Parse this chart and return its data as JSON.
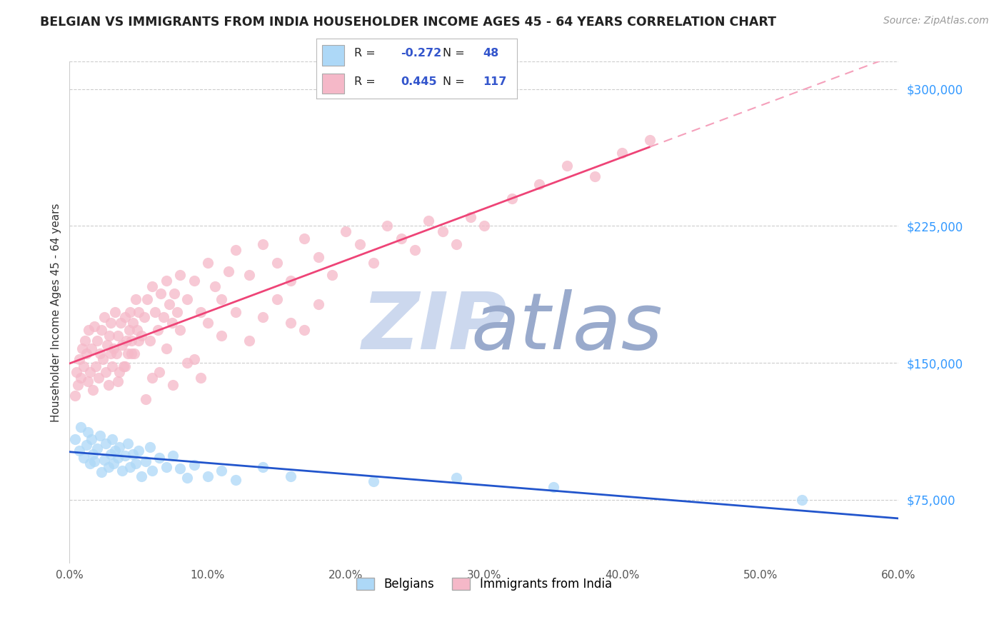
{
  "title": "BELGIAN VS IMMIGRANTS FROM INDIA HOUSEHOLDER INCOME AGES 45 - 64 YEARS CORRELATION CHART",
  "source": "Source: ZipAtlas.com",
  "ylabel_values": [
    75000,
    150000,
    225000,
    300000
  ],
  "ymin": 40000,
  "ymax": 315000,
  "xmin": 0.0,
  "xmax": 0.6,
  "xticks": [
    0.0,
    0.1,
    0.2,
    0.3,
    0.4,
    0.5,
    0.6
  ],
  "legend_labels": [
    "Belgians",
    "Immigrants from India"
  ],
  "legend_R": [
    "-0.272",
    "0.445"
  ],
  "legend_N": [
    "48",
    "117"
  ],
  "belgian_color": "#add8f7",
  "indian_color": "#f5b8c8",
  "belgian_line_color": "#2255cc",
  "indian_line_color": "#ee4477",
  "indian_line_dashed_color": "#f5a0bb",
  "watermark_zip_color": "#ccd8ee",
  "watermark_atlas_color": "#99aacc",
  "title_color": "#222222",
  "title_fontsize": 12.5,
  "source_color": "#999999",
  "source_fontsize": 10,
  "right_axis_color": "#3399ff",
  "belgian_scatter": {
    "x": [
      0.004,
      0.007,
      0.008,
      0.01,
      0.012,
      0.013,
      0.015,
      0.016,
      0.017,
      0.018,
      0.02,
      0.022,
      0.023,
      0.025,
      0.026,
      0.028,
      0.03,
      0.031,
      0.032,
      0.033,
      0.035,
      0.036,
      0.038,
      0.04,
      0.042,
      0.044,
      0.046,
      0.048,
      0.05,
      0.052,
      0.055,
      0.058,
      0.06,
      0.065,
      0.07,
      0.075,
      0.08,
      0.085,
      0.09,
      0.1,
      0.11,
      0.12,
      0.14,
      0.16,
      0.22,
      0.28,
      0.35,
      0.53
    ],
    "y": [
      108000,
      102000,
      115000,
      98000,
      105000,
      112000,
      95000,
      108000,
      100000,
      96000,
      103000,
      110000,
      90000,
      97000,
      106000,
      93000,
      100000,
      108000,
      95000,
      102000,
      98000,
      104000,
      91000,
      99000,
      106000,
      93000,
      100000,
      95000,
      102000,
      88000,
      96000,
      104000,
      91000,
      98000,
      93000,
      99000,
      92000,
      87000,
      94000,
      88000,
      91000,
      86000,
      93000,
      88000,
      85000,
      87000,
      82000,
      75000
    ]
  },
  "indian_scatter": {
    "x": [
      0.004,
      0.005,
      0.006,
      0.007,
      0.008,
      0.009,
      0.01,
      0.011,
      0.012,
      0.013,
      0.014,
      0.015,
      0.016,
      0.017,
      0.018,
      0.019,
      0.02,
      0.021,
      0.022,
      0.023,
      0.024,
      0.025,
      0.026,
      0.027,
      0.028,
      0.029,
      0.03,
      0.031,
      0.032,
      0.033,
      0.034,
      0.035,
      0.036,
      0.037,
      0.038,
      0.039,
      0.04,
      0.041,
      0.042,
      0.043,
      0.044,
      0.045,
      0.046,
      0.047,
      0.048,
      0.049,
      0.05,
      0.052,
      0.054,
      0.056,
      0.058,
      0.06,
      0.062,
      0.064,
      0.066,
      0.068,
      0.07,
      0.072,
      0.074,
      0.076,
      0.078,
      0.08,
      0.085,
      0.09,
      0.095,
      0.1,
      0.105,
      0.11,
      0.115,
      0.12,
      0.13,
      0.14,
      0.15,
      0.16,
      0.17,
      0.18,
      0.19,
      0.2,
      0.21,
      0.22,
      0.23,
      0.24,
      0.25,
      0.26,
      0.27,
      0.28,
      0.29,
      0.3,
      0.32,
      0.34,
      0.36,
      0.38,
      0.4,
      0.42,
      0.03,
      0.04,
      0.05,
      0.06,
      0.07,
      0.08,
      0.09,
      0.1,
      0.11,
      0.12,
      0.13,
      0.14,
      0.15,
      0.16,
      0.17,
      0.18,
      0.035,
      0.045,
      0.055,
      0.065,
      0.075,
      0.085,
      0.095
    ],
    "y": [
      132000,
      145000,
      138000,
      152000,
      142000,
      158000,
      148000,
      162000,
      155000,
      140000,
      168000,
      145000,
      158000,
      135000,
      170000,
      148000,
      162000,
      142000,
      155000,
      168000,
      152000,
      175000,
      145000,
      160000,
      138000,
      165000,
      172000,
      148000,
      158000,
      178000,
      155000,
      165000,
      145000,
      172000,
      160000,
      148000,
      175000,
      162000,
      155000,
      168000,
      178000,
      162000,
      172000,
      155000,
      185000,
      168000,
      178000,
      165000,
      175000,
      185000,
      162000,
      192000,
      178000,
      168000,
      188000,
      175000,
      195000,
      182000,
      172000,
      188000,
      178000,
      198000,
      185000,
      195000,
      178000,
      205000,
      192000,
      185000,
      200000,
      212000,
      198000,
      215000,
      205000,
      195000,
      218000,
      208000,
      198000,
      222000,
      215000,
      205000,
      225000,
      218000,
      212000,
      228000,
      222000,
      215000,
      230000,
      225000,
      240000,
      248000,
      258000,
      252000,
      265000,
      272000,
      155000,
      148000,
      162000,
      142000,
      158000,
      168000,
      152000,
      172000,
      165000,
      178000,
      162000,
      175000,
      185000,
      172000,
      168000,
      182000,
      140000,
      155000,
      130000,
      145000,
      138000,
      150000,
      142000
    ]
  }
}
